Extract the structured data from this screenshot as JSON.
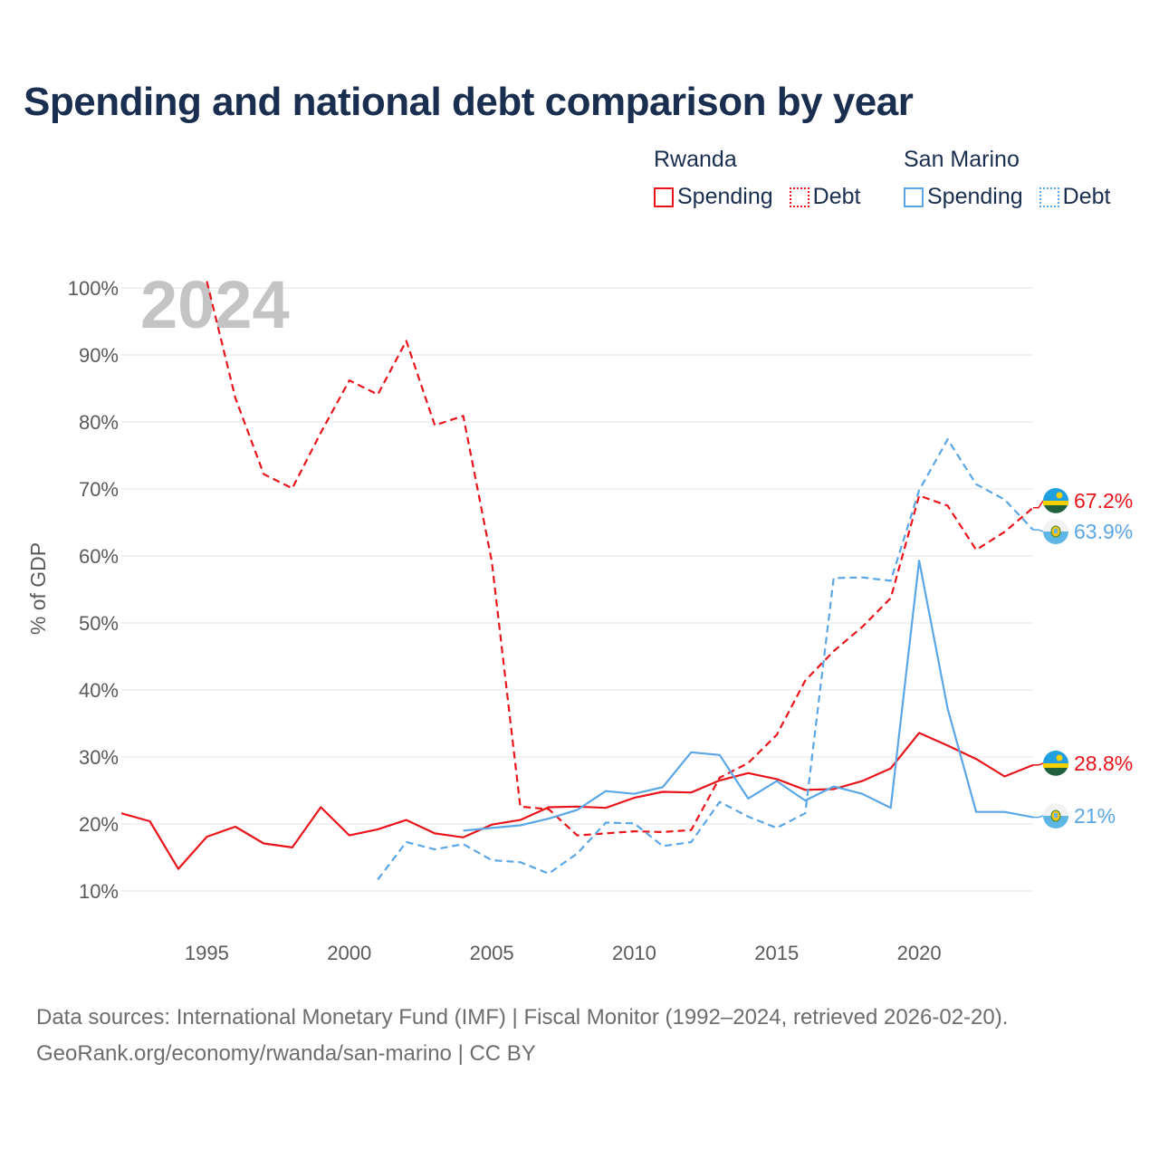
{
  "title": "Spending and national debt comparison by year",
  "legend": {
    "groups": [
      {
        "name": "Rwanda",
        "items": [
          "Spending",
          "Debt"
        ]
      },
      {
        "name": "San Marino",
        "items": [
          "Spending",
          "Debt"
        ]
      }
    ]
  },
  "colors": {
    "rwanda": "#e8141b",
    "san_marino": "#5ba6e6"
  },
  "year_watermark": "2024",
  "footer": {
    "line1": "Data sources: International Monetary Fund (IMF) | Fiscal Monitor (1992–2024, retrieved 2026-02-20).",
    "line2": "GeoRank.org/economy/rwanda/san-marino | CC BY"
  },
  "chart_data": {
    "type": "line",
    "title": "Spending and national debt comparison by year",
    "xlabel": "",
    "ylabel": "% of GDP",
    "xlim": [
      1992,
      2024
    ],
    "ylim": [
      5,
      100
    ],
    "x_ticks": [
      1995,
      2000,
      2005,
      2010,
      2015,
      2020
    ],
    "y_ticks": [
      10,
      20,
      30,
      40,
      50,
      60,
      70,
      80,
      90,
      100
    ],
    "y_tick_labels": [
      "10%",
      "20%",
      "30%",
      "40%",
      "50%",
      "60%",
      "70%",
      "80%",
      "90%",
      "100%"
    ],
    "grid": true,
    "legend_position": "top-right",
    "series": [
      {
        "name": "Rwanda Spending",
        "color": "#e8141b",
        "dash": false,
        "x": [
          1992,
          1993,
          1994,
          1995,
          1996,
          1997,
          1998,
          1999,
          2000,
          2001,
          2002,
          2003,
          2004,
          2005,
          2006,
          2007,
          2008,
          2009,
          2010,
          2011,
          2012,
          2013,
          2014,
          2015,
          2016,
          2017,
          2018,
          2019,
          2020,
          2021,
          2022,
          2023,
          2024
        ],
        "values": [
          21.6,
          20.4,
          13.3,
          18.1,
          19.6,
          17.1,
          16.5,
          22.5,
          18.3,
          19.2,
          20.6,
          18.6,
          18.0,
          19.9,
          20.6,
          22.5,
          22.6,
          22.4,
          23.9,
          24.8,
          24.7,
          26.5,
          27.6,
          26.7,
          25.1,
          25.2,
          26.4,
          28.3,
          33.6,
          31.7,
          29.7,
          27.1,
          28.8
        ],
        "end_label": "28.8%"
      },
      {
        "name": "Rwanda Debt",
        "color": "#e8141b",
        "dash": true,
        "x": [
          1995,
          1996,
          1997,
          1998,
          1999,
          2000,
          2001,
          2002,
          2003,
          2004,
          2005,
          2006,
          2007,
          2008,
          2009,
          2010,
          2011,
          2012,
          2013,
          2014,
          2015,
          2016,
          2017,
          2018,
          2019,
          2020,
          2021,
          2022,
          2023,
          2024
        ],
        "values": [
          101.0,
          83.6,
          72.2,
          70.1,
          78.4,
          86.2,
          84.1,
          92.1,
          79.5,
          80.9,
          59.2,
          22.6,
          22.2,
          18.3,
          18.6,
          18.9,
          18.8,
          19.1,
          26.9,
          29.1,
          33.3,
          41.4,
          45.8,
          49.4,
          53.7,
          69.0,
          67.5,
          60.9,
          63.6,
          67.2
        ],
        "end_label": "67.2%"
      },
      {
        "name": "San Marino Spending",
        "color": "#5ba6e6",
        "dash": false,
        "x": [
          2004,
          2005,
          2006,
          2007,
          2008,
          2009,
          2010,
          2011,
          2012,
          2013,
          2014,
          2015,
          2016,
          2017,
          2018,
          2019,
          2020,
          2021,
          2022,
          2023,
          2024
        ],
        "values": [
          19.0,
          19.4,
          19.8,
          20.8,
          22.1,
          24.9,
          24.5,
          25.5,
          30.7,
          30.3,
          23.8,
          26.4,
          23.5,
          25.6,
          24.5,
          22.4,
          59.3,
          37.2,
          21.8,
          21.8,
          21.0
        ],
        "end_label": "21%"
      },
      {
        "name": "San Marino Debt",
        "color": "#5ba6e6",
        "dash": true,
        "x": [
          2001,
          2002,
          2003,
          2004,
          2005,
          2006,
          2007,
          2008,
          2009,
          2010,
          2011,
          2012,
          2013,
          2014,
          2015,
          2016,
          2017,
          2018,
          2019,
          2020,
          2021,
          2022,
          2023,
          2024
        ],
        "values": [
          11.7,
          17.3,
          16.2,
          17.0,
          14.6,
          14.3,
          12.6,
          15.6,
          20.2,
          20.1,
          16.7,
          17.3,
          23.3,
          21.1,
          19.4,
          21.6,
          56.7,
          56.8,
          56.3,
          69.8,
          77.4,
          70.7,
          68.4,
          63.9
        ],
        "end_label": "63.9%"
      }
    ]
  }
}
